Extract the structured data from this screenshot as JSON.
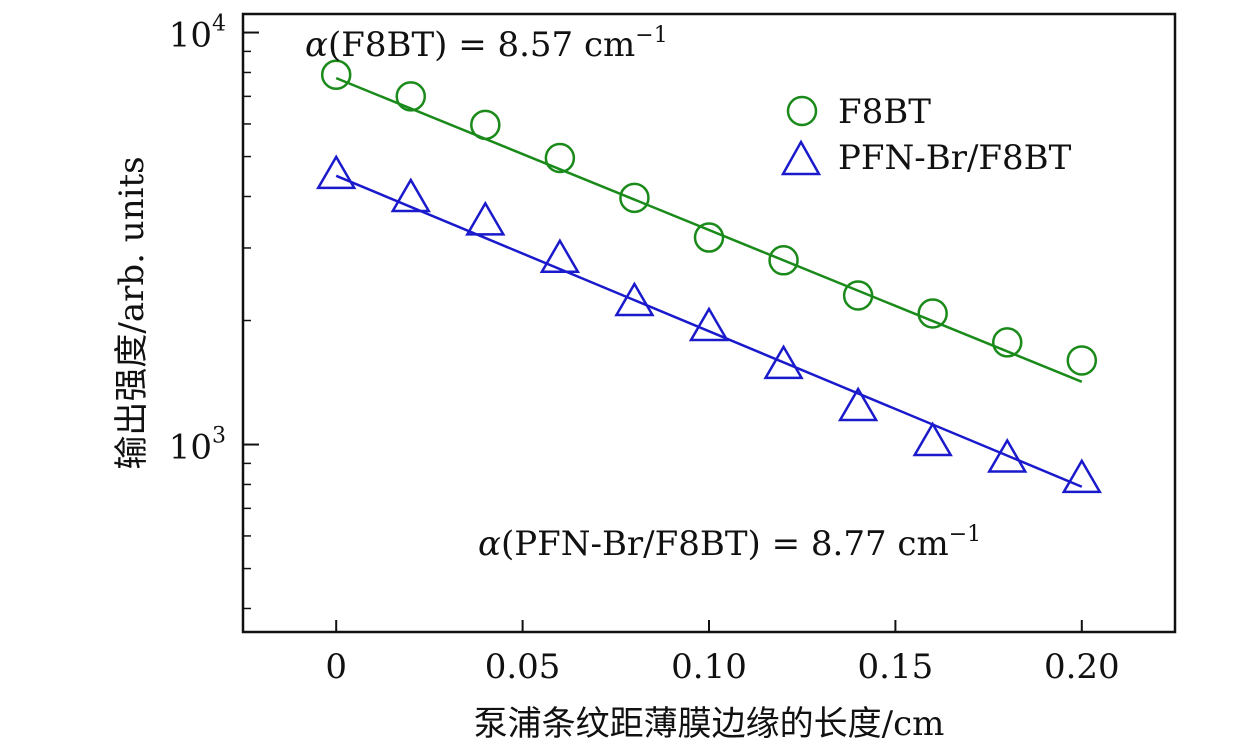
{
  "chart_data": {
    "type": "scatter",
    "xlabel": "泵浦条纹距薄膜边缘的长度/cm",
    "ylabel": "输出强度/arb. units",
    "xlim": [
      -0.025,
      0.225
    ],
    "ylim_log10": [
      2.545,
      4.045
    ],
    "y_scale": "log",
    "x_ticks": [
      {
        "value": 0,
        "label": "0"
      },
      {
        "value": 0.05,
        "label": "0.05"
      },
      {
        "value": 0.1,
        "label": "0.10"
      },
      {
        "value": 0.15,
        "label": "0.15"
      },
      {
        "value": 0.2,
        "label": "0.20"
      }
    ],
    "y_ticks": [
      {
        "value": 1000,
        "base": "10",
        "exp": "3"
      },
      {
        "value": 10000,
        "base": "10",
        "exp": "4"
      }
    ],
    "legend_position": "top-right",
    "series": [
      {
        "name": "F8BT",
        "marker": "circle",
        "color": "#1a8a1a",
        "x": [
          0,
          0.02,
          0.04,
          0.06,
          0.08,
          0.1,
          0.12,
          0.14,
          0.16,
          0.18,
          0.2
        ],
        "y": [
          7900,
          7000,
          5970,
          4960,
          3970,
          3180,
          2800,
          2300,
          2080,
          1770,
          1600
        ],
        "fit": {
          "x": [
            0,
            0.2
          ],
          "y": [
            7750,
            1420
          ]
        }
      },
      {
        "name": "PFN-Br/F8BT",
        "marker": "triangle",
        "color": "#1a1acc",
        "x": [
          0,
          0.02,
          0.04,
          0.06,
          0.08,
          0.1,
          0.12,
          0.14,
          0.16,
          0.18,
          0.2
        ],
        "y": [
          4540,
          3990,
          3500,
          2840,
          2230,
          1940,
          1570,
          1240,
          1020,
          930,
          830
        ],
        "fit": {
          "x": [
            0,
            0.2
          ],
          "y": [
            4490,
            790
          ]
        }
      }
    ],
    "annotations": [
      {
        "alpha": "α",
        "text": "(F8BT) = 8.57 cm",
        "sup": "−1"
      },
      {
        "alpha": "α",
        "text": "(PFN-Br/F8BT) = 8.77 cm",
        "sup": "−1"
      }
    ]
  }
}
